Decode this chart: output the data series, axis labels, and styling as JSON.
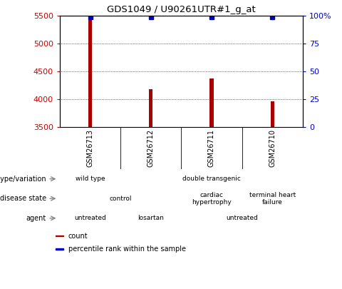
{
  "title": "GDS1049 / U90261UTR#1_g_at",
  "samples": [
    "GSM26713",
    "GSM26712",
    "GSM26711",
    "GSM26710"
  ],
  "bar_values": [
    5480,
    4180,
    4370,
    3960
  ],
  "percentile_values": [
    99,
    99,
    99,
    99
  ],
  "ylim_left": [
    3500,
    5500
  ],
  "ylim_right": [
    0,
    100
  ],
  "yticks_left": [
    3500,
    4000,
    4500,
    5000,
    5500
  ],
  "yticks_right": [
    0,
    25,
    50,
    75,
    100
  ],
  "bar_color": "#aa0000",
  "dot_color": "#0000cc",
  "left_tick_color": "#cc0000",
  "right_tick_color": "#0000cc",
  "annotation_rows": [
    {
      "label": "genotype/variation",
      "cells": [
        {
          "text": "wild type",
          "span": 1,
          "color": "#66cc55"
        },
        {
          "text": "double transgenic",
          "span": 3,
          "color": "#44bb44"
        }
      ]
    },
    {
      "label": "disease state",
      "cells": [
        {
          "text": "control",
          "span": 2,
          "color": "#bbbbee"
        },
        {
          "text": "cardiac\nhypertrophy",
          "span": 1,
          "color": "#9999cc"
        },
        {
          "text": "terminal heart\nfailure",
          "span": 1,
          "color": "#9999cc"
        }
      ]
    },
    {
      "label": "agent",
      "cells": [
        {
          "text": "untreated",
          "span": 1,
          "color": "#ffcccc"
        },
        {
          "text": "losartan",
          "span": 1,
          "color": "#ee9988"
        },
        {
          "text": "untreated",
          "span": 2,
          "color": "#ffcccc"
        }
      ]
    }
  ],
  "legend_items": [
    {
      "color": "#aa0000",
      "label": "count"
    },
    {
      "color": "#0000cc",
      "label": "percentile rank within the sample"
    }
  ]
}
